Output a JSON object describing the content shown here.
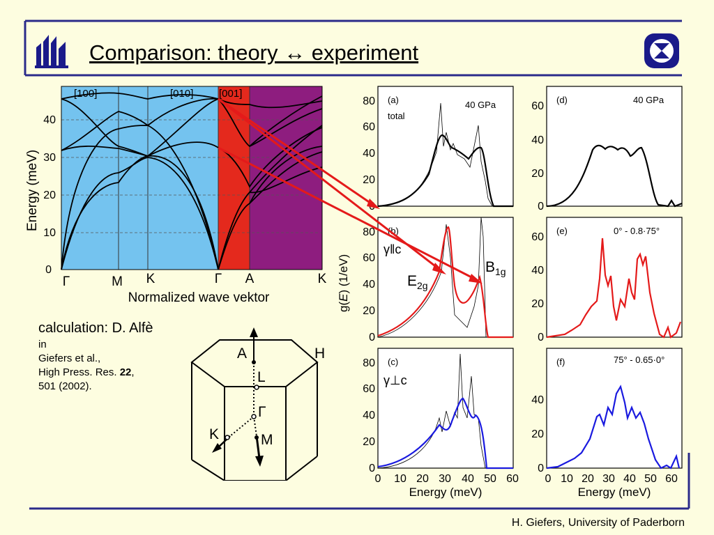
{
  "slide": {
    "title": "Comparison: theory ↔ experiment",
    "credit_line1": "calculation: D. Alfè",
    "credit_line2": "in",
    "credit_line3": "Giefers et al.,",
    "credit_line4a": "High Press. Res. ",
    "credit_line4b": "22",
    "credit_line4c": ",",
    "credit_line5": "501 (2002).",
    "footer": "H. Giefers, University of Paderborn"
  },
  "dispersion": {
    "ylabel": "Energy (meV)",
    "xlabel": "Normalized wave vektor",
    "yticks": [
      "0",
      "10",
      "20",
      "30",
      "40"
    ],
    "points": [
      "Γ",
      "M",
      "K",
      "Γ",
      "A",
      "K"
    ],
    "directions": [
      "[100]",
      "[010]",
      "[001]"
    ],
    "colors": {
      "basal": "#74c3ef",
      "axial": "#e4291d",
      "other": "#8e1d7f"
    }
  },
  "brillouin": {
    "labels": [
      "A",
      "H",
      "L",
      "Γ",
      "K",
      "M"
    ]
  },
  "dos_panels": {
    "ylabel_g": "g(",
    "ylabel_E": "E",
    "ylabel_rest": ") (1/eV)",
    "xlabel": "Energy (meV)",
    "left_xticks": [
      "0",
      "10",
      "20",
      "30",
      "40",
      "50",
      "60"
    ],
    "right_xticks": [
      "0",
      "10",
      "20",
      "30",
      "40",
      "50",
      "60"
    ],
    "a": {
      "tag": "(a)",
      "sub": "total",
      "note": "40 GPa",
      "yticks": [
        "0",
        "20",
        "40",
        "60",
        "80"
      ]
    },
    "b": {
      "tag": "(b)",
      "pol": "γ‖c",
      "yticks": [
        "0",
        "20",
        "40",
        "60",
        "80"
      ],
      "e2g": "E",
      "e2g_sub": "2g",
      "b1g": "B",
      "b1g_sub": "1g"
    },
    "c": {
      "tag": "(c)",
      "pol": "γ⊥c",
      "yticks": [
        "0",
        "20",
        "40",
        "60",
        "80"
      ]
    },
    "d": {
      "tag": "(d)",
      "note": "40 GPa",
      "yticks": [
        "0",
        "20",
        "40",
        "60"
      ]
    },
    "e": {
      "tag": "(e)",
      "note": "0° - 0.8·75°",
      "yticks": [
        "0",
        "20",
        "40",
        "60"
      ]
    },
    "f": {
      "tag": "(f)",
      "note": "75° - 0.65·0°",
      "yticks": [
        "0",
        "20",
        "40"
      ]
    },
    "colors": {
      "black": "#000000",
      "red": "#e41a1a",
      "blue": "#1a1adf"
    }
  }
}
